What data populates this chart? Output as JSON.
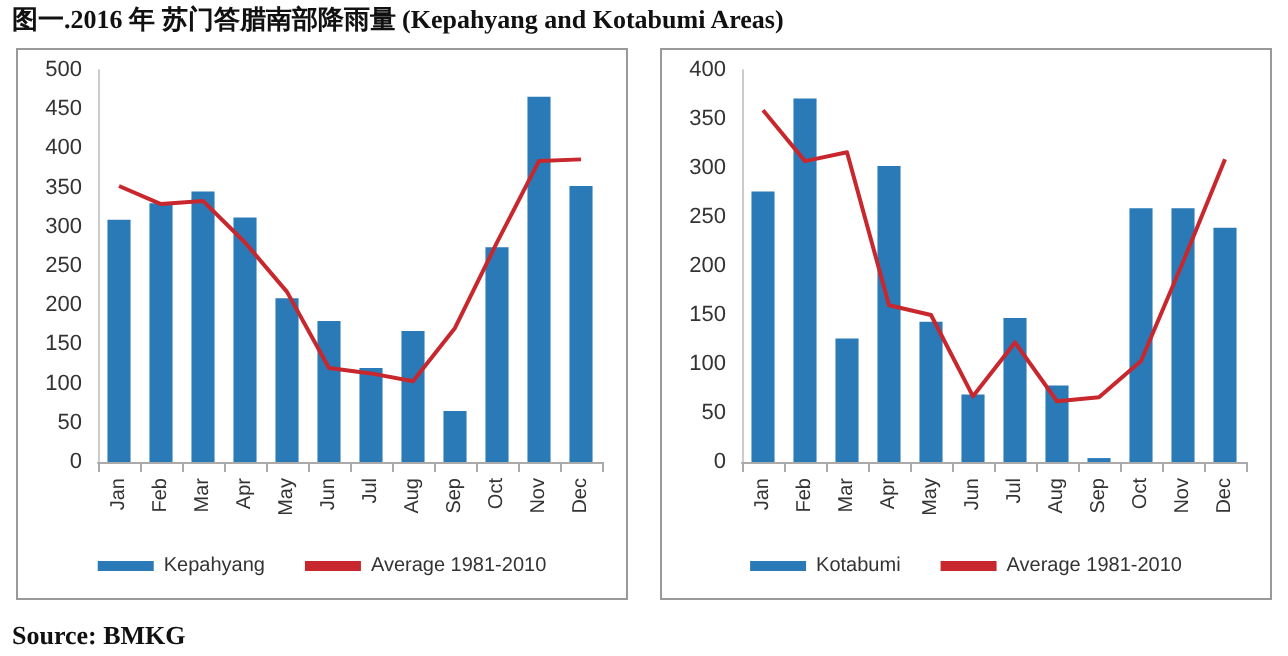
{
  "chart_data": [
    {
      "type": "bar",
      "title": "图一.2016 年 苏门答腊南部降雨量 (Kepahyang and Kotabumi Areas)",
      "annotations": [
        "Source: BMKG"
      ],
      "categories": [
        "Jan",
        "Feb",
        "Mar",
        "Apr",
        "May",
        "Jun",
        "Jul",
        "Aug",
        "Sep",
        "Oct",
        "Nov",
        "Dec"
      ],
      "series": [
        {
          "name": "Kepahyang",
          "color": "#2a7ab8",
          "values": [
            309,
            330,
            345,
            312,
            209,
            180,
            120,
            167,
            65,
            274,
            466,
            352
          ]
        },
        {
          "name": "Average 1981-2010",
          "type": "line",
          "color": "#c8282d",
          "values": [
            352,
            329,
            333,
            280,
            217,
            120,
            113,
            103,
            171,
            280,
            384,
            386
          ]
        }
      ],
      "ylim": [
        0,
        500
      ],
      "yticks": [
        0,
        50,
        100,
        150,
        200,
        250,
        300,
        350,
        400,
        450,
        500
      ],
      "grid": false,
      "legend": "bottom",
      "marker": "none"
    },
    {
      "type": "bar",
      "categories": [
        "Jan",
        "Feb",
        "Mar",
        "Apr",
        "May",
        "Jun",
        "Jul",
        "Aug",
        "Sep",
        "Oct",
        "Nov",
        "Dec"
      ],
      "series": [
        {
          "name": "Kotabumi",
          "color": "#2a7ab8",
          "values": [
            276,
            371,
            126,
            302,
            143,
            69,
            147,
            78,
            4,
            259,
            259,
            239
          ]
        },
        {
          "name": "Average 1981-2010",
          "type": "line",
          "color": "#c8282d",
          "values": [
            359,
            307,
            316,
            160,
            150,
            67,
            122,
            62,
            66,
            103,
            204,
            309
          ]
        }
      ],
      "ylim": [
        0,
        400
      ],
      "yticks": [
        0,
        50,
        100,
        150,
        200,
        250,
        300,
        350,
        400
      ],
      "grid": false,
      "legend": "bottom",
      "marker": "none"
    }
  ]
}
